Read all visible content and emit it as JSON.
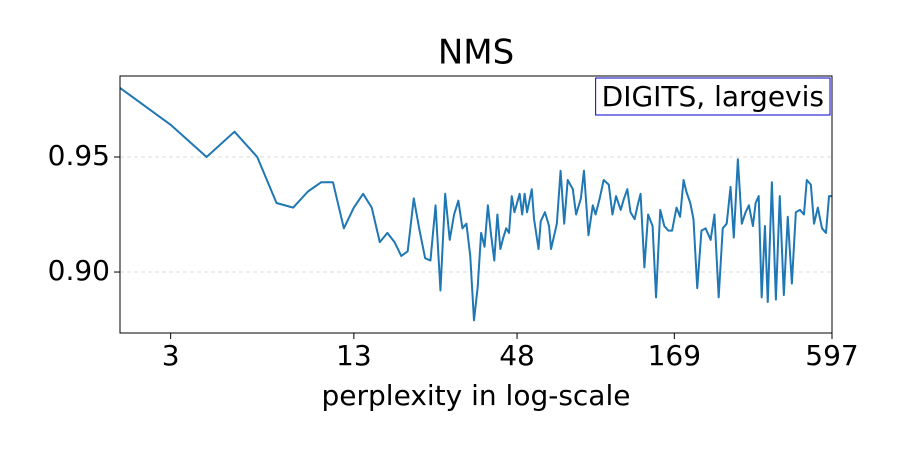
{
  "chart_data": {
    "type": "line",
    "title": "NMS",
    "xlabel": "perplexity in log-scale",
    "annotation": "DIGITS, largevis",
    "xscale": "log",
    "grid": true,
    "xlim": [
      2,
      597
    ],
    "xticks": [
      3,
      13,
      48,
      169,
      597
    ],
    "ylim": [
      0.8735,
      0.9852
    ],
    "yticks": [
      {
        "value": 0.9,
        "label": "0.90"
      },
      {
        "value": 0.95,
        "label": "0.95"
      }
    ],
    "x": [
      2,
      3,
      4,
      5,
      6,
      7,
      8,
      9,
      10,
      11,
      12,
      13,
      14,
      15,
      16,
      17,
      18,
      19,
      20,
      21,
      22,
      23,
      24,
      25,
      26,
      27,
      28,
      29,
      30,
      31,
      32,
      33,
      34,
      35,
      36,
      37,
      38,
      39,
      40,
      41,
      42,
      43,
      44,
      45,
      46,
      47,
      49,
      50,
      51,
      52,
      54,
      55,
      57,
      58,
      60,
      62,
      63,
      66,
      68,
      70,
      72,
      75,
      77,
      80,
      82,
      85,
      88,
      90,
      93,
      96,
      100,
      103,
      106,
      110,
      113,
      116,
      119,
      123,
      126,
      129,
      133,
      137,
      142,
      146,
      151,
      156,
      161,
      166,
      172,
      177,
      182,
      186,
      192,
      197,
      203,
      210,
      217,
      226,
      233,
      241,
      249,
      257,
      265,
      272,
      281,
      290,
      299,
      307,
      317,
      324,
      332,
      340,
      349,
      357,
      369,
      381,
      393,
      406,
      419,
      433,
      447,
      462,
      477,
      488,
      504,
      517,
      533,
      551,
      569,
      583,
      597
    ],
    "series": [
      {
        "name": "NMS",
        "color": "#1f77b4",
        "values": [
          0.98,
          0.964,
          0.95,
          0.961,
          0.95,
          0.93,
          0.928,
          0.935,
          0.939,
          0.939,
          0.919,
          0.928,
          0.934,
          0.928,
          0.913,
          0.917,
          0.913,
          0.907,
          0.909,
          0.932,
          0.918,
          0.906,
          0.905,
          0.929,
          0.892,
          0.934,
          0.914,
          0.925,
          0.931,
          0.919,
          0.921,
          0.907,
          0.879,
          0.893,
          0.917,
          0.911,
          0.929,
          0.916,
          0.905,
          0.925,
          0.91,
          0.915,
          0.919,
          0.917,
          0.933,
          0.926,
          0.934,
          0.925,
          0.934,
          0.926,
          0.936,
          0.923,
          0.91,
          0.922,
          0.926,
          0.92,
          0.91,
          0.921,
          0.944,
          0.921,
          0.94,
          0.936,
          0.925,
          0.932,
          0.944,
          0.916,
          0.929,
          0.925,
          0.932,
          0.94,
          0.938,
          0.925,
          0.933,
          0.927,
          0.932,
          0.936,
          0.926,
          0.923,
          0.929,
          0.934,
          0.902,
          0.925,
          0.92,
          0.889,
          0.927,
          0.92,
          0.918,
          0.918,
          0.928,
          0.924,
          0.94,
          0.935,
          0.93,
          0.923,
          0.893,
          0.918,
          0.919,
          0.914,
          0.925,
          0.889,
          0.919,
          0.921,
          0.937,
          0.915,
          0.949,
          0.921,
          0.926,
          0.929,
          0.92,
          0.93,
          0.933,
          0.889,
          0.92,
          0.887,
          0.939,
          0.888,
          0.933,
          0.89,
          0.924,
          0.895,
          0.926,
          0.927,
          0.925,
          0.94,
          0.938,
          0.921,
          0.928,
          0.919,
          0.917,
          0.933,
          0.933
        ]
      }
    ]
  }
}
